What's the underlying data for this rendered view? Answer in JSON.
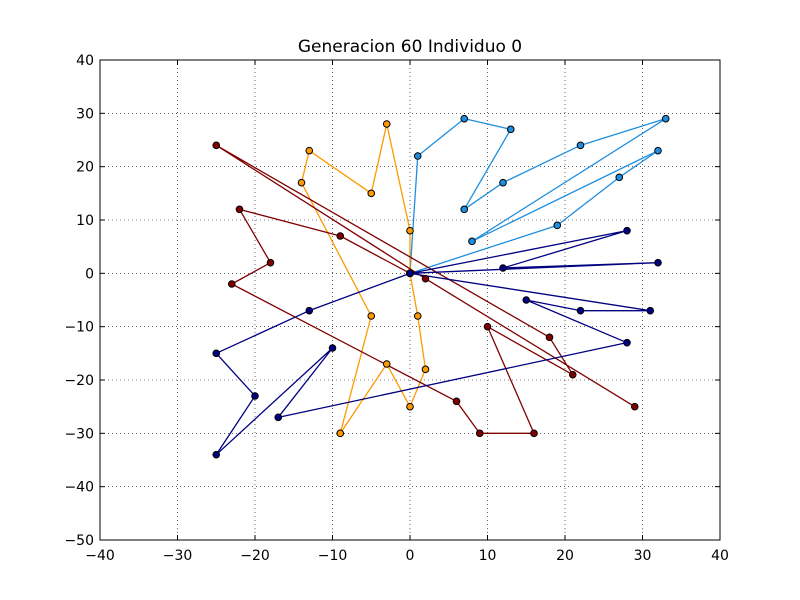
{
  "chart_data": {
    "type": "scatter",
    "title": "Generacion 60 Individuo 0",
    "xlabel": "",
    "ylabel": "",
    "xlim": [
      -40,
      40
    ],
    "ylim": [
      -50,
      40
    ],
    "x_ticks": [
      -40,
      -30,
      -20,
      -10,
      0,
      10,
      20,
      30,
      40
    ],
    "y_ticks": [
      -50,
      -40,
      -30,
      -20,
      -10,
      0,
      10,
      20,
      30,
      40
    ],
    "x_tick_labels": [
      "−40",
      "−30",
      "−20",
      "−10",
      "0",
      "10",
      "20",
      "30",
      "40"
    ],
    "y_tick_labels": [
      "−50",
      "−40",
      "−30",
      "−20",
      "−10",
      "0",
      "10",
      "20",
      "30",
      "40"
    ],
    "grid": true,
    "legend": "none",
    "depot": [
      0,
      0
    ],
    "routes": [
      {
        "color": "#1f8ee0",
        "points": [
          [
            0,
            0
          ],
          [
            1,
            22
          ],
          [
            7,
            29
          ],
          [
            13,
            27
          ],
          [
            7,
            12
          ],
          [
            12,
            17
          ],
          [
            22,
            24
          ],
          [
            33,
            29
          ],
          [
            8,
            6
          ],
          [
            32,
            23
          ],
          [
            27,
            18
          ],
          [
            19,
            9
          ],
          [
            0,
            0
          ]
        ]
      },
      {
        "color": "#ff9900",
        "points": [
          [
            0,
            0
          ],
          [
            0,
            8
          ],
          [
            -3,
            28
          ],
          [
            -5,
            15
          ],
          [
            -13,
            23
          ],
          [
            -14,
            17
          ],
          [
            -5,
            -8
          ],
          [
            -9,
            -30
          ],
          [
            -3,
            -17
          ],
          [
            0,
            -25
          ],
          [
            2,
            -18
          ],
          [
            1,
            -8
          ],
          [
            0,
            0
          ]
        ]
      },
      {
        "color": "#800000",
        "points": [
          [
            0,
            0
          ],
          [
            -9,
            7
          ],
          [
            -22,
            12
          ],
          [
            -18,
            2
          ],
          [
            -23,
            -2
          ],
          [
            6,
            -24
          ],
          [
            9,
            -30
          ],
          [
            16,
            -30
          ],
          [
            10,
            -10
          ],
          [
            21,
            -19
          ],
          [
            18,
            -12
          ],
          [
            -25,
            24
          ],
          [
            2,
            -1
          ],
          [
            29,
            -25
          ]
        ]
      },
      {
        "color": "#000080",
        "points": [
          [
            0,
            0
          ],
          [
            -13,
            -7
          ],
          [
            -25,
            -15
          ],
          [
            -20,
            -23
          ],
          [
            -25,
            -34
          ],
          [
            -10,
            -14
          ],
          [
            -17,
            -27
          ],
          [
            28,
            -13
          ],
          [
            15,
            -5
          ],
          [
            22,
            -7
          ],
          [
            31,
            -7
          ],
          [
            0,
            0
          ],
          [
            32,
            2
          ],
          [
            12,
            1
          ],
          [
            28,
            8
          ],
          [
            0,
            0
          ]
        ]
      }
    ]
  }
}
